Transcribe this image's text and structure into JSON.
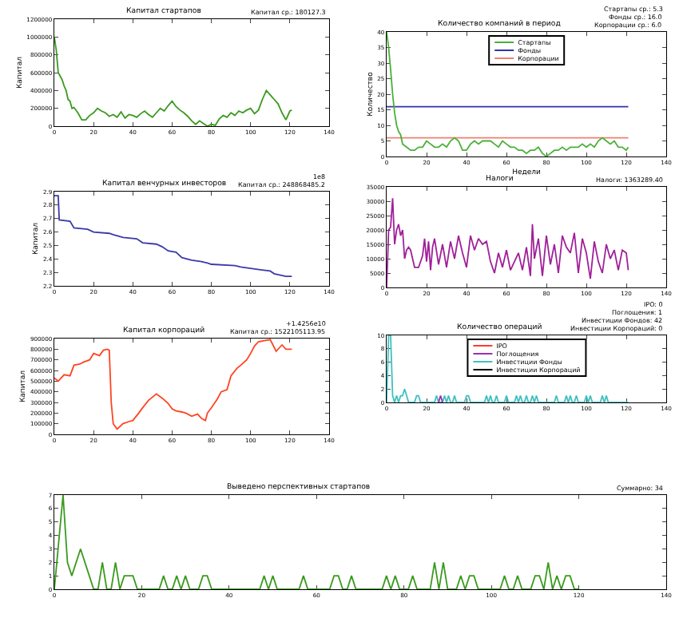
{
  "chart_data": [
    {
      "type": "line",
      "title": "Капитал стартапов",
      "ylabel": "Капитал",
      "annotations": [
        "Капитал ср.: 180127.3"
      ],
      "xlim": [
        0,
        140
      ],
      "xticks": [
        0,
        20,
        40,
        60,
        80,
        100,
        120,
        140
      ],
      "ylim": [
        0,
        1200000
      ],
      "yticks": [
        0,
        200000,
        400000,
        600000,
        800000,
        1000000,
        1200000
      ],
      "grid": false,
      "legend": false,
      "x": [
        0,
        1,
        2,
        3,
        4,
        5,
        6,
        7,
        8,
        9,
        10,
        12,
        14,
        16,
        18,
        20,
        22,
        24,
        26,
        28,
        30,
        32,
        34,
        36,
        38,
        40,
        42,
        44,
        46,
        48,
        50,
        52,
        54,
        56,
        58,
        60,
        62,
        64,
        66,
        68,
        70,
        72,
        74,
        76,
        78,
        80,
        82,
        84,
        86,
        88,
        90,
        92,
        94,
        96,
        98,
        100,
        102,
        104,
        106,
        108,
        110,
        112,
        114,
        116,
        118,
        120,
        121
      ],
      "series": [
        {
          "color": "#3a9a1e",
          "values": [
            1000000,
            850000,
            600000,
            560000,
            520000,
            450000,
            400000,
            300000,
            280000,
            200000,
            210000,
            150000,
            70000,
            70000,
            120000,
            150000,
            200000,
            170000,
            150000,
            110000,
            130000,
            100000,
            160000,
            90000,
            130000,
            120000,
            100000,
            140000,
            170000,
            130000,
            100000,
            150000,
            200000,
            170000,
            230000,
            280000,
            220000,
            180000,
            150000,
            110000,
            60000,
            20000,
            60000,
            30000,
            0,
            20000,
            10000,
            80000,
            120000,
            100000,
            150000,
            120000,
            170000,
            150000,
            180000,
            200000,
            140000,
            180000,
            300000,
            400000,
            350000,
            300000,
            250000,
            150000,
            70000,
            170000,
            180000
          ]
        }
      ]
    },
    {
      "type": "line",
      "title": "Количество компаний в период",
      "xlabel": "Недели",
      "ylabel": "Количество",
      "annotations": [
        "Стартапы ср.: 5.3",
        "Фонды ср.: 16.0",
        "Корпорации ср.: 6.0"
      ],
      "xlim": [
        0,
        140
      ],
      "xticks": [
        0,
        20,
        40,
        60,
        80,
        100,
        120,
        140
      ],
      "ylim": [
        0,
        40
      ],
      "yticks": [
        0,
        5,
        10,
        15,
        20,
        25,
        30,
        35,
        40
      ],
      "grid": false,
      "legend": "top",
      "series": [
        {
          "name": "Стартапы",
          "color": "#4caf3a",
          "x": [
            0,
            1,
            2,
            3,
            4,
            5,
            6,
            7,
            8,
            10,
            12,
            14,
            16,
            18,
            20,
            22,
            24,
            26,
            28,
            30,
            32,
            34,
            36,
            38,
            40,
            42,
            44,
            46,
            48,
            50,
            52,
            54,
            56,
            58,
            60,
            62,
            64,
            66,
            68,
            70,
            72,
            74,
            76,
            78,
            80,
            82,
            84,
            86,
            88,
            90,
            92,
            94,
            96,
            98,
            100,
            102,
            104,
            106,
            108,
            110,
            112,
            114,
            116,
            118,
            120,
            121
          ],
          "values": [
            40,
            35,
            28,
            20,
            14,
            10,
            8,
            7,
            4,
            3,
            2,
            2,
            3,
            3,
            5,
            4,
            3,
            3,
            4,
            3,
            5,
            6,
            5,
            2,
            2,
            4,
            5,
            4,
            5,
            5,
            5,
            4,
            3,
            5,
            4,
            3,
            3,
            2,
            2,
            1,
            2,
            2,
            3,
            1,
            0,
            1,
            2,
            2,
            3,
            2,
            3,
            3,
            3,
            4,
            3,
            4,
            3,
            5,
            6,
            5,
            4,
            5,
            3,
            3,
            2,
            3
          ]
        },
        {
          "name": "Фонды",
          "color": "#3333aa",
          "x": [
            0,
            121
          ],
          "values": [
            16,
            16
          ]
        },
        {
          "name": "Корпорации",
          "color": "#f08070",
          "x": [
            0,
            121
          ],
          "values": [
            6,
            6
          ]
        }
      ]
    },
    {
      "type": "line",
      "title": "Капитал венчурных инвесторов",
      "ylabel": "Капитал",
      "annotations": [
        "1e8",
        "Капитал ср.: 248868485.2"
      ],
      "xlim": [
        0,
        140
      ],
      "xticks": [
        0,
        20,
        40,
        60,
        80,
        100,
        120,
        140
      ],
      "ylim": [
        2.2,
        2.9
      ],
      "yticks": [
        2.2,
        2.3,
        2.4,
        2.5,
        2.6,
        2.7,
        2.8,
        2.9
      ],
      "grid": false,
      "legend": false,
      "x": [
        0,
        2,
        2.5,
        8,
        10,
        17,
        20,
        28,
        30,
        35,
        42,
        45,
        52,
        55,
        58,
        62,
        65,
        70,
        75,
        78,
        80,
        92,
        95,
        100,
        105,
        110,
        112,
        118,
        121
      ],
      "series": [
        {
          "color": "#3a3aa8",
          "values": [
            2.87,
            2.87,
            2.69,
            2.68,
            2.63,
            2.62,
            2.6,
            2.59,
            2.58,
            2.56,
            2.55,
            2.52,
            2.51,
            2.49,
            2.46,
            2.45,
            2.41,
            2.39,
            2.38,
            2.37,
            2.36,
            2.35,
            2.34,
            2.33,
            2.32,
            2.31,
            2.29,
            2.27,
            2.27
          ]
        }
      ]
    },
    {
      "type": "line",
      "title": "Налоги",
      "annotations": [
        "Налоги: 1363289.40"
      ],
      "xlim": [
        0,
        140
      ],
      "xticks": [
        0,
        20,
        40,
        60,
        80,
        100,
        120,
        140
      ],
      "ylim": [
        0,
        35000
      ],
      "yticks": [
        0,
        5000,
        10000,
        15000,
        20000,
        25000,
        30000,
        35000
      ],
      "grid": false,
      "legend": false,
      "x": [
        0,
        1,
        2,
        3,
        4,
        5,
        6,
        7,
        8,
        9,
        10,
        11,
        12,
        14,
        16,
        18,
        19,
        20,
        21,
        22,
        23,
        24,
        26,
        28,
        30,
        32,
        34,
        36,
        38,
        40,
        42,
        44,
        46,
        48,
        50,
        52,
        54,
        56,
        58,
        60,
        62,
        64,
        66,
        68,
        70,
        72,
        73,
        74,
        76,
        78,
        80,
        82,
        84,
        86,
        88,
        90,
        92,
        94,
        96,
        98,
        100,
        102,
        104,
        106,
        108,
        110,
        112,
        114,
        116,
        118,
        120,
        121
      ],
      "series": [
        {
          "color": "#a0209a",
          "values": [
            0,
            20000,
            21000,
            31000,
            15000,
            20000,
            22000,
            18000,
            20000,
            10000,
            13000,
            14000,
            13000,
            7000,
            7000,
            11000,
            17000,
            9000,
            16000,
            6000,
            14000,
            17000,
            8000,
            15000,
            7000,
            16000,
            10000,
            18000,
            12000,
            7000,
            18000,
            13000,
            17000,
            15000,
            16000,
            9000,
            5000,
            12000,
            7000,
            13000,
            6000,
            9000,
            12000,
            6000,
            14000,
            4000,
            22000,
            10000,
            17000,
            4000,
            18000,
            8000,
            15000,
            5000,
            18000,
            14000,
            12000,
            19000,
            5000,
            17000,
            12000,
            3000,
            16000,
            9000,
            5000,
            15000,
            10000,
            13000,
            6000,
            13000,
            12000,
            6000
          ]
        }
      ]
    },
    {
      "type": "line",
      "title": "Капитал корпораций",
      "ylabel": "Капитал",
      "annotations": [
        "+1.4256e10",
        "Капитал ср.: 1522105113.95"
      ],
      "xlim": [
        0,
        140
      ],
      "xticks": [
        0,
        20,
        40,
        60,
        80,
        100,
        120,
        140
      ],
      "ylim": [
        0,
        900000
      ],
      "yticks": [
        0,
        100000,
        200000,
        300000,
        400000,
        500000,
        600000,
        700000,
        800000,
        900000
      ],
      "grid": false,
      "legend": false,
      "x": [
        0,
        2,
        5,
        8,
        10,
        13,
        15,
        18,
        20,
        23,
        25,
        27,
        28,
        29,
        30,
        32,
        35,
        38,
        40,
        43,
        45,
        48,
        50,
        52,
        55,
        58,
        60,
        62,
        65,
        67,
        70,
        73,
        75,
        77,
        78,
        80,
        83,
        85,
        88,
        90,
        93,
        95,
        98,
        100,
        102,
        104,
        107,
        110,
        113,
        116,
        118,
        121
      ],
      "series": [
        {
          "color": "#ff4422",
          "values": [
            530000,
            500000,
            560000,
            550000,
            650000,
            660000,
            680000,
            700000,
            760000,
            740000,
            790000,
            800000,
            790000,
            300000,
            100000,
            50000,
            100000,
            120000,
            130000,
            200000,
            250000,
            320000,
            350000,
            380000,
            340000,
            290000,
            240000,
            220000,
            210000,
            200000,
            170000,
            190000,
            150000,
            130000,
            200000,
            250000,
            330000,
            400000,
            420000,
            550000,
            620000,
            650000,
            700000,
            760000,
            830000,
            870000,
            880000,
            890000,
            780000,
            840000,
            800000,
            800000
          ]
        }
      ]
    },
    {
      "type": "line",
      "title": "Количество операций",
      "annotations": [
        "IPO: 0",
        "Поглощения: 1",
        "Инвестиции Фондов: 42",
        "Инвестиции Корпораций: 0"
      ],
      "xlim": [
        0,
        140
      ],
      "xticks": [
        0,
        20,
        40,
        60,
        80,
        100,
        120,
        140
      ],
      "ylim": [
        0,
        10
      ],
      "yticks": [
        0,
        2,
        4,
        6,
        8,
        10
      ],
      "grid": false,
      "legend": "top",
      "series": [
        {
          "name": "IPO",
          "color": "#ff3b30"
        },
        {
          "name": "Поглощения",
          "color": "#9b30b0",
          "x": [
            26,
            27,
            28
          ],
          "values": [
            0,
            1,
            0
          ]
        },
        {
          "name": "Инвестиции Фонды",
          "color": "#40c0c0",
          "x": [
            0,
            1,
            2,
            3,
            4,
            5,
            6,
            7,
            8,
            9,
            10,
            11,
            14,
            15,
            16,
            17,
            24,
            25,
            26,
            27,
            28,
            29,
            30,
            31,
            32,
            33,
            34,
            35,
            39,
            40,
            41,
            42,
            49,
            50,
            51,
            52,
            53,
            54,
            55,
            56,
            59,
            60,
            61,
            64,
            65,
            66,
            67,
            68,
            69,
            70,
            71,
            72,
            73,
            74,
            75,
            76,
            84,
            85,
            86,
            89,
            90,
            91,
            92,
            93,
            94,
            95,
            96,
            99,
            100,
            101,
            102,
            103,
            107,
            108,
            109,
            110,
            111,
            121
          ],
          "values": [
            0,
            10,
            10,
            1,
            0,
            1,
            0,
            1,
            1,
            2,
            1,
            0,
            0,
            1,
            1,
            0,
            0,
            1,
            0,
            0,
            0,
            1,
            0,
            1,
            0,
            0,
            1,
            0,
            0,
            1,
            1,
            0,
            0,
            1,
            0,
            1,
            0,
            0,
            1,
            0,
            0,
            1,
            0,
            0,
            1,
            0,
            1,
            0,
            0,
            1,
            0,
            0,
            1,
            0,
            1,
            0,
            0,
            1,
            0,
            0,
            1,
            0,
            1,
            0,
            0,
            1,
            0,
            0,
            1,
            0,
            1,
            0,
            0,
            1,
            0,
            1,
            0,
            0
          ]
        },
        {
          "name": "Инвестиции Корпораций",
          "color": "#000000"
        }
      ]
    },
    {
      "type": "line",
      "title": "Выведено перспективных стартапов",
      "annotations": [
        "Суммарно: 34"
      ],
      "xlim": [
        0,
        140
      ],
      "xticks": [
        0,
        20,
        40,
        60,
        80,
        100,
        120,
        140
      ],
      "ylim": [
        0,
        7
      ],
      "yticks": [
        0,
        1,
        2,
        3,
        4,
        5,
        6,
        7
      ],
      "grid": false,
      "legend": false,
      "x": [
        0,
        2,
        3,
        4,
        6,
        8,
        9,
        10,
        11,
        12,
        13,
        14,
        15,
        16,
        18,
        19,
        24,
        25,
        26,
        27,
        28,
        29,
        30,
        31,
        33,
        34,
        35,
        36,
        47,
        48,
        49,
        50,
        51,
        56,
        57,
        58,
        63,
        64,
        65,
        66,
        67,
        68,
        69,
        75,
        76,
        77,
        78,
        79,
        81,
        82,
        83,
        86,
        87,
        88,
        89,
        90,
        92,
        93,
        94,
        95,
        96,
        97,
        102,
        103,
        104,
        105,
        106,
        107,
        109,
        110,
        111,
        112,
        113,
        114,
        115,
        116,
        117,
        118,
        119,
        120
      ],
      "series": [
        {
          "color": "#3a9a1e",
          "values": [
            0,
            7,
            2,
            1,
            3,
            1,
            0,
            0,
            2,
            0,
            0,
            2,
            0,
            1,
            1,
            0,
            0,
            1,
            0,
            0,
            1,
            0,
            1,
            0,
            0,
            1,
            1,
            0,
            0,
            1,
            0,
            1,
            0,
            0,
            1,
            0,
            0,
            1,
            1,
            0,
            0,
            1,
            0,
            0,
            1,
            0,
            1,
            0,
            0,
            1,
            0,
            0,
            2,
            0,
            2,
            0,
            0,
            1,
            0,
            1,
            1,
            0,
            0,
            1,
            0,
            0,
            1,
            0,
            0,
            1,
            1,
            0,
            2,
            0,
            1,
            0,
            1,
            1,
            0,
            0
          ]
        }
      ]
    }
  ]
}
